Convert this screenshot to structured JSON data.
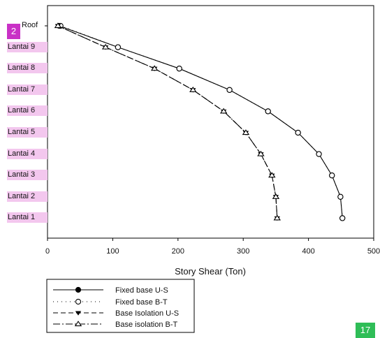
{
  "badges": {
    "top_left": "2",
    "bottom_right": "17"
  },
  "chart_data": {
    "type": "line",
    "xlabel": "Story Shear (Ton)",
    "xlim": [
      0,
      500
    ],
    "x_ticks": [
      "0",
      "100",
      "200",
      "300",
      "400",
      "500"
    ],
    "categories": [
      "Roof",
      "Lantai 9",
      "Lantai 8",
      "Lantai 7",
      "Lantai 6",
      "Lantai 5",
      "Lantai 4",
      "Lantai 3",
      "Lantai 2",
      "Lantai 1"
    ],
    "grid": false,
    "legend_position": "bottom-left",
    "series": [
      {
        "name": "Fixed base U-S",
        "values": [
          18,
          108,
          202,
          279,
          338,
          384,
          416,
          436,
          449,
          452
        ]
      },
      {
        "name": "Fixed base B-T",
        "values": [
          20,
          108,
          202,
          279,
          338,
          384,
          416,
          436,
          449,
          452
        ]
      },
      {
        "name": "Base Isolation U-S",
        "values": [
          16,
          89,
          164,
          223,
          270,
          304,
          327,
          344,
          350,
          352
        ]
      },
      {
        "name": "Base isolation B-T",
        "values": [
          16,
          89,
          164,
          223,
          270,
          304,
          327,
          344,
          350,
          352
        ]
      }
    ]
  }
}
